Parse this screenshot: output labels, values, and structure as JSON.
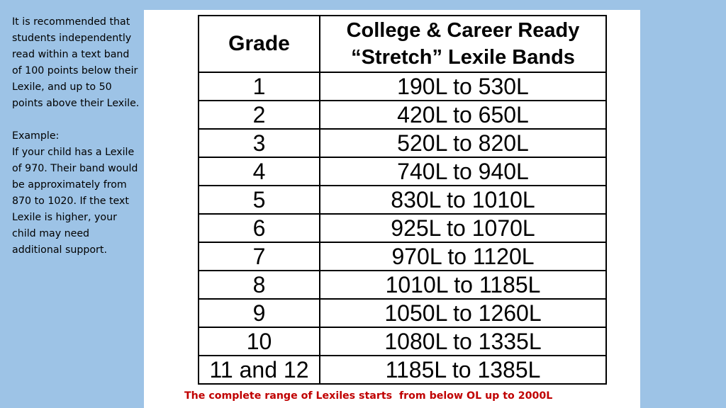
{
  "sidebar": {
    "paragraph1": "It is recommended that students independently read within a text band of 100 points below their Lexile, and up to 50 points above their Lexile.",
    "example_label": "Example:",
    "example_text": "If your child has a Lexile of 970. Their band would be approximately from 870 to 1020.  If the text Lexile is higher, your child may need additional support."
  },
  "table": {
    "headers": {
      "grade": "Grade",
      "band_line1": "College & Career Ready",
      "band_line2": "“Stretch” Lexile Bands"
    },
    "rows": [
      {
        "grade": "1",
        "band": "190L to 530L"
      },
      {
        "grade": "2",
        "band": "420L to 650L"
      },
      {
        "grade": "3",
        "band": "520L to 820L"
      },
      {
        "grade": "4",
        "band": "740L to 940L"
      },
      {
        "grade": "5",
        "band": "830L to 1010L"
      },
      {
        "grade": "6",
        "band": "925L to 1070L"
      },
      {
        "grade": "7",
        "band": "970L to 1120L"
      },
      {
        "grade": "8",
        "band": "1010L to 1185L"
      },
      {
        "grade": "9",
        "band": "1050L to 1260L"
      },
      {
        "grade": "10",
        "band": "1080L to 1335L"
      },
      {
        "grade": "11 and 12",
        "band": "1185L to 1385L"
      }
    ]
  },
  "footer": {
    "note": "The complete range of Lexiles starts  from below OL up to 2000L"
  },
  "colors": {
    "background": "#9dc3e6",
    "panel": "#ffffff",
    "footer_text": "#c00000"
  }
}
